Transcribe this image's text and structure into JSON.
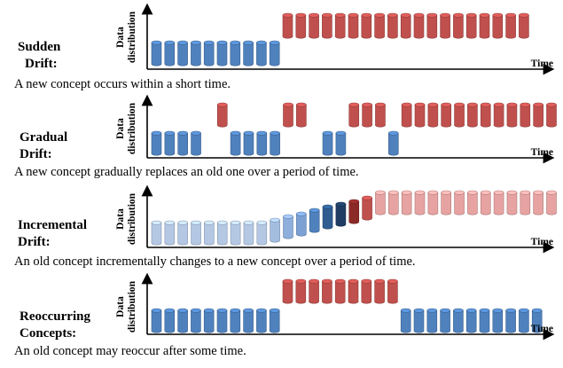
{
  "axis": {
    "y_label": "Data distribution",
    "y_label_line1": "Data",
    "y_label_line2": "distribution",
    "x_label": "Time"
  },
  "colors": {
    "blue": "#4f81bd",
    "red": "#c0504d",
    "blue_light_1": "#b4c8e4",
    "blue_light_2": "#a3bddf",
    "blue_light_3": "#8eaedb",
    "blue_light_4": "#7aa0d4",
    "blue_mid": "#4f81bd",
    "blue_dark": "#2f5c91",
    "navy": "#1f3d63",
    "red_dark": "#8c2a28",
    "red_mid": "#c0504d",
    "red_light": "#e6a3a1"
  },
  "panels": [
    {
      "title_lines": [
        "Sudden",
        "Drift:"
      ],
      "description": "A new concept occurs within a short time.",
      "bars": [
        "B",
        "B",
        "B",
        "B",
        "B",
        "B",
        "B",
        "B",
        "B",
        "B",
        "R",
        "R",
        "R",
        "R",
        "R",
        "R",
        "R",
        "R",
        "R",
        "R",
        "R",
        "R",
        "R",
        "R",
        "R",
        "R",
        "R",
        "R",
        "R"
      ]
    },
    {
      "title_lines": [
        "Gradual",
        "Drift:"
      ],
      "description": "A new concept gradually replaces an old one over a period of time.",
      "bars": [
        "B",
        "B",
        "B",
        "B",
        "_",
        "R",
        "B",
        "B",
        "B",
        "B",
        "R",
        "R",
        "_",
        "B",
        "B",
        "R",
        "R",
        "R",
        "B",
        "R",
        "R",
        "R",
        "R",
        "R",
        "R",
        "R",
        "R",
        "R",
        "R",
        "R",
        "R"
      ]
    },
    {
      "title_lines": [
        "Incremental",
        "Drift:"
      ],
      "description": "An old concept incrementally changes to a new concept over a period of time.",
      "bars": [
        "L1",
        "L1",
        "L1",
        "L1",
        "L1",
        "L1",
        "L1",
        "L1",
        "L1",
        "L2",
        "L3",
        "L4",
        "BM",
        "BD",
        "NV",
        "RD",
        "RM",
        "RL",
        "RL",
        "RL",
        "RL",
        "RL",
        "RL",
        "RL",
        "RL",
        "RL",
        "RL",
        "RL",
        "RL",
        "RL",
        "RL"
      ]
    },
    {
      "title_lines": [
        "Reoccurring",
        "Concepts:"
      ],
      "description": "An old concept may reoccur after some time.",
      "bars": [
        "B",
        "B",
        "B",
        "B",
        "B",
        "B",
        "B",
        "B",
        "B",
        "B",
        "R",
        "R",
        "R",
        "R",
        "R",
        "R",
        "R",
        "R",
        "R",
        "B",
        "B",
        "B",
        "B",
        "B",
        "B",
        "B",
        "B",
        "B",
        "B",
        "B"
      ]
    }
  ]
}
